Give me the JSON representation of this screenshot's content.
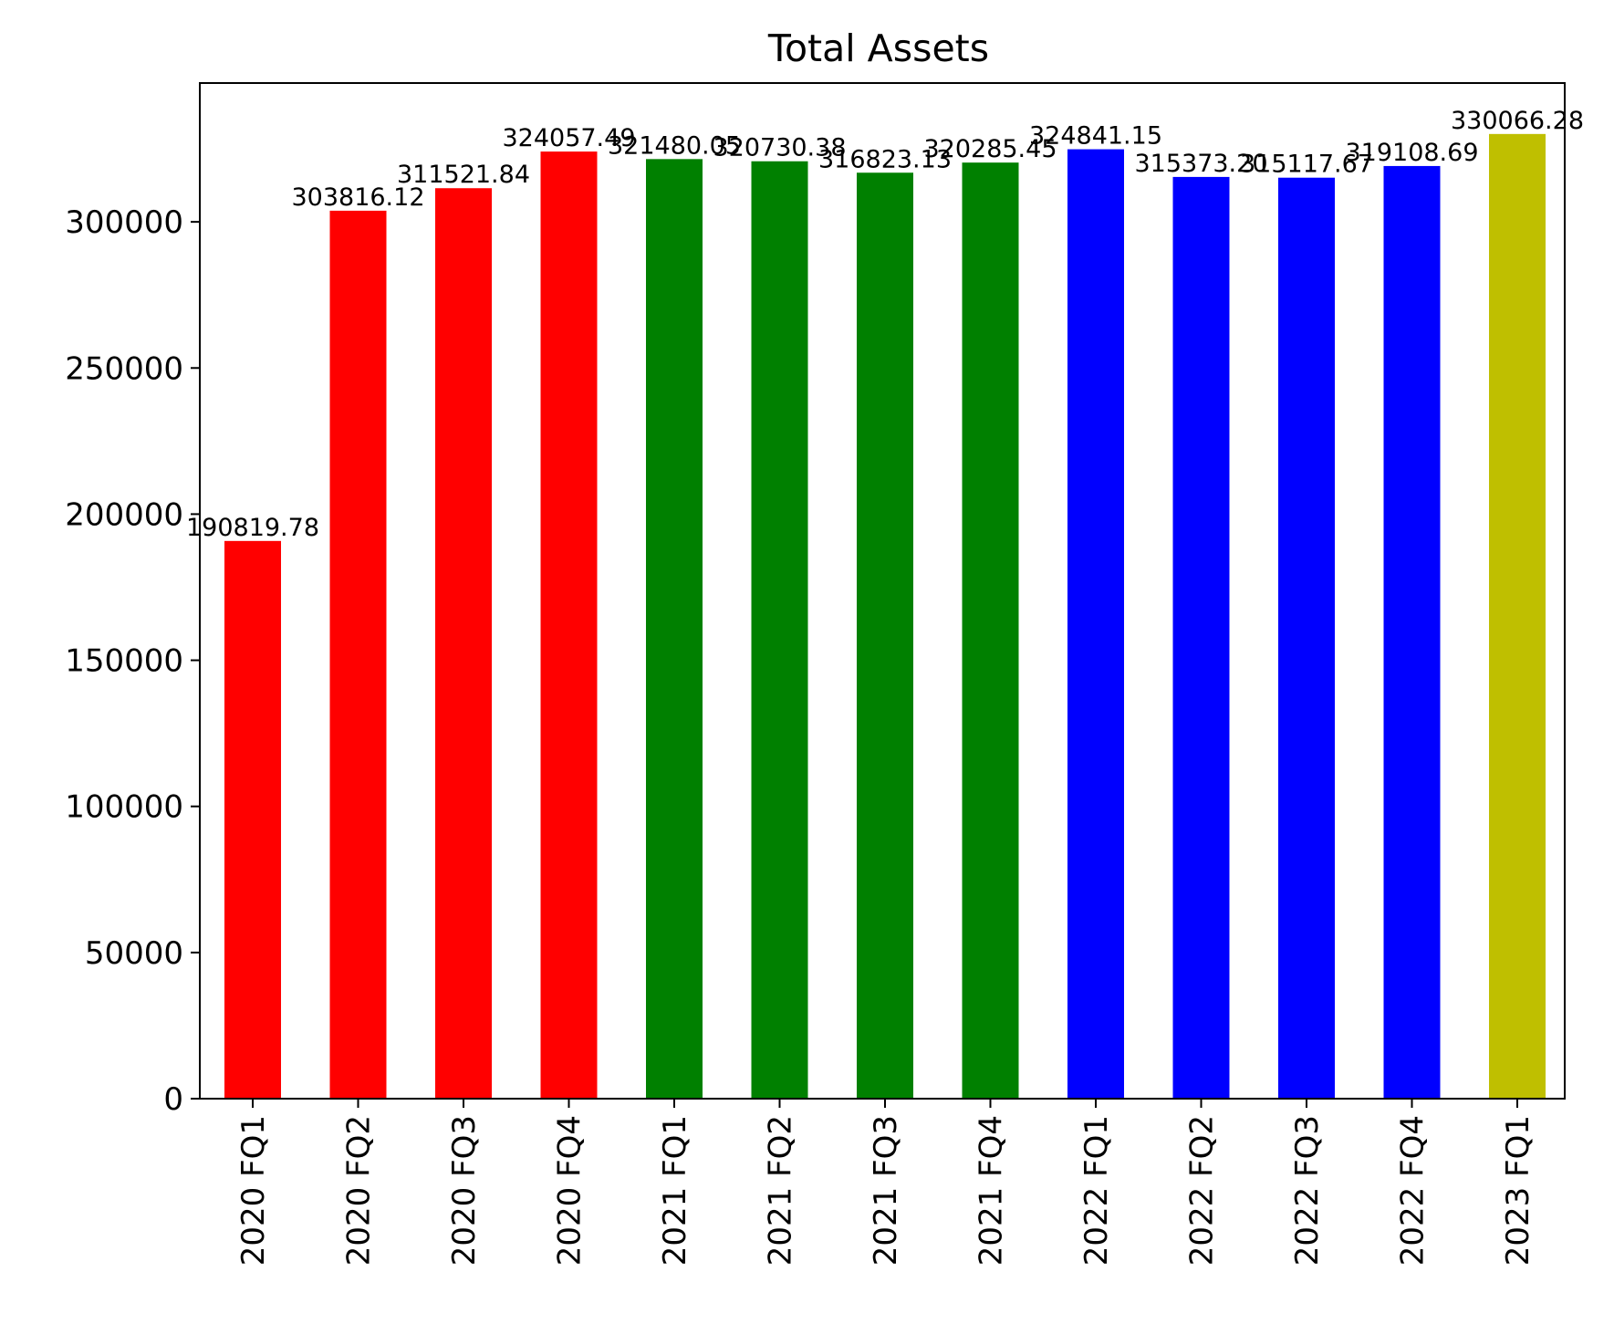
{
  "chart_data": {
    "type": "bar",
    "title": "Total Assets",
    "xlabel": "",
    "ylabel": "",
    "ylim": [
      0,
      347500
    ],
    "yticks": [
      0,
      50000,
      100000,
      150000,
      200000,
      250000,
      300000
    ],
    "categories": [
      "2020 FQ1",
      "2020 FQ2",
      "2020 FQ3",
      "2020 FQ4",
      "2021 FQ1",
      "2021 FQ2",
      "2021 FQ3",
      "2021 FQ4",
      "2022 FQ1",
      "2022 FQ2",
      "2022 FQ3",
      "2022 FQ4",
      "2023 FQ1"
    ],
    "values": [
      190819.78,
      303816.12,
      311521.84,
      324057.49,
      321480.05,
      320730.38,
      316823.13,
      320285.45,
      324841.15,
      315373.2,
      315117.67,
      319108.69,
      330066.28
    ],
    "value_labels": [
      "190819.78",
      "303816.12",
      "311521.84",
      "324057.49",
      "321480.05",
      "320730.38",
      "316823.13",
      "320285.45",
      "324841.15",
      "315373.20",
      "315117.67",
      "319108.69",
      "330066.28"
    ],
    "bar_colors": [
      "#ff0000",
      "#ff0000",
      "#ff0000",
      "#ff0000",
      "#008000",
      "#008000",
      "#008000",
      "#008000",
      "#0000ff",
      "#0000ff",
      "#0000ff",
      "#0000ff",
      "#bfbf00"
    ],
    "grid": false,
    "legend": "none"
  }
}
